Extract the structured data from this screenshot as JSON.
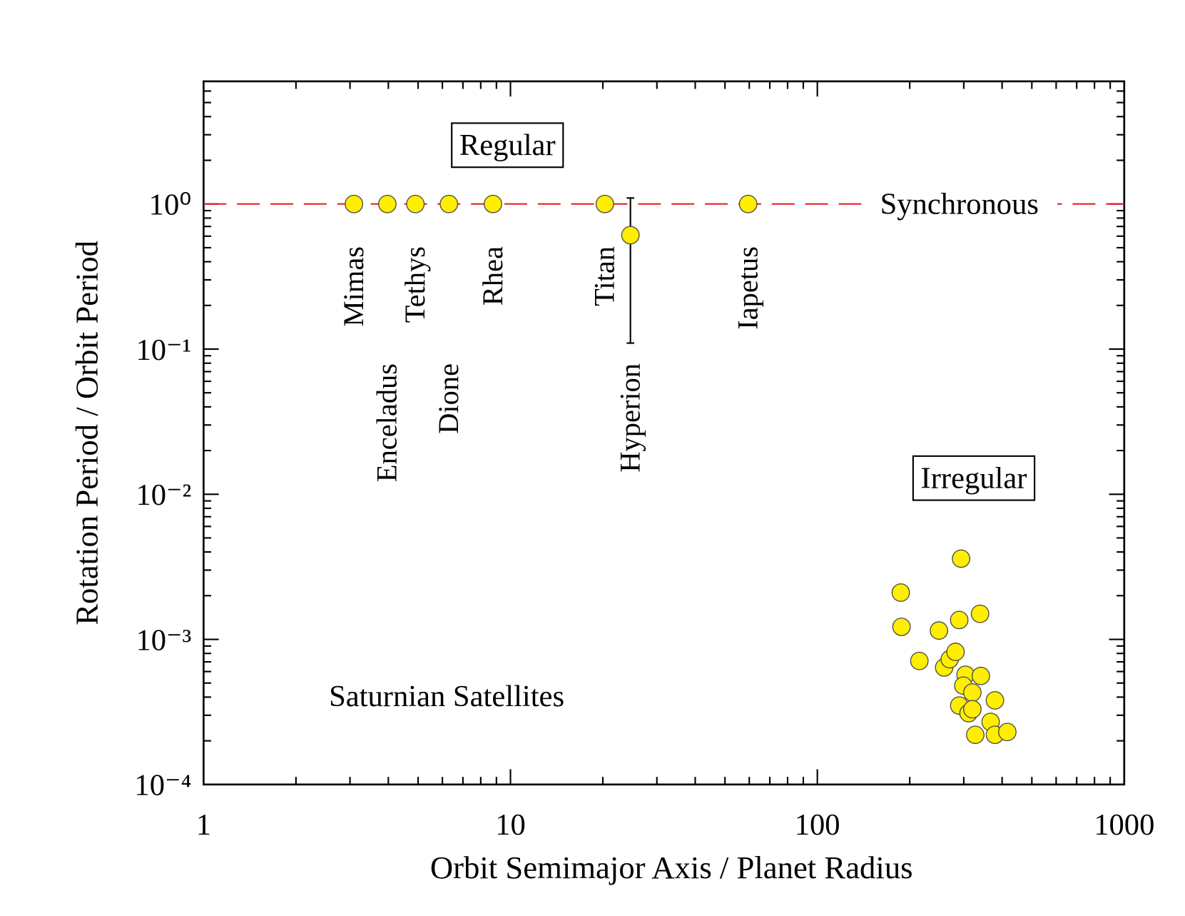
{
  "chart_data": {
    "type": "scatter",
    "xlabel": "Orbit Semimajor Axis / Planet Radius",
    "ylabel": "Rotation Period / Orbit Period",
    "xscale": "log",
    "yscale": "log",
    "xlim": [
      1,
      1000
    ],
    "ylim": [
      0.0001,
      7
    ],
    "xticks": [
      1,
      10,
      100,
      1000
    ],
    "yticks": [
      {
        "value": 0.0001,
        "label": "10⁻⁴"
      },
      {
        "value": 0.001,
        "label": "10⁻³"
      },
      {
        "value": 0.01,
        "label": "10⁻²"
      },
      {
        "value": 0.1,
        "label": "10⁻¹"
      },
      {
        "value": 1,
        "label": "10⁰"
      }
    ],
    "xminorticks": [
      2,
      3,
      4,
      5,
      6,
      7,
      8,
      9,
      20,
      30,
      40,
      50,
      60,
      70,
      80,
      90,
      200,
      300,
      400,
      500,
      600,
      700,
      800,
      900
    ],
    "yminorticks": [
      0.0002,
      0.0003,
      0.0004,
      0.0005,
      0.0006,
      0.0007,
      0.0008,
      0.0009,
      0.002,
      0.003,
      0.004,
      0.005,
      0.006,
      0.007,
      0.008,
      0.009,
      0.02,
      0.03,
      0.04,
      0.05,
      0.06,
      0.07,
      0.08,
      0.09,
      0.2,
      0.3,
      0.4,
      0.5,
      0.6,
      0.7,
      0.8,
      0.9,
      2,
      3,
      4,
      5,
      6,
      7
    ],
    "reference_lines": [
      {
        "value": 1,
        "label": "Synchronous",
        "color": "#e8202a"
      }
    ],
    "annotations": [
      "Regular",
      "Irregular",
      "Saturnian Satellites"
    ],
    "series": [
      {
        "color": "#ffee00",
        "labels": [
          "Mimas",
          "Enceladus",
          "Tethys",
          "Dione",
          "Rhea",
          "Titan",
          "Hyperion",
          "Iapetus"
        ],
        "x": [
          3.09,
          3.97,
          4.9,
          6.3,
          8.77,
          20.3,
          24.6,
          59.5
        ],
        "values": [
          1,
          1,
          1,
          1,
          1,
          1,
          0.61,
          1
        ],
        "y_lower": [
          null,
          null,
          null,
          null,
          null,
          null,
          0.11,
          null
        ],
        "y_upper": [
          null,
          null,
          null,
          null,
          null,
          null,
          1.1,
          null
        ]
      },
      {
        "color": "#ffee00",
        "x": [
          187,
          188,
          215,
          249,
          259,
          270,
          282,
          294,
          290,
          304,
          299,
          290,
          311,
          320,
          320,
          327,
          339,
          341,
          379,
          367,
          379,
          416
        ],
        "values": [
          0.0021,
          0.00122,
          0.00071,
          0.00115,
          0.00064,
          0.00073,
          0.00082,
          0.0036,
          0.00136,
          0.00057,
          0.00048,
          0.00035,
          0.00031,
          0.00043,
          0.00033,
          0.00022,
          0.0015,
          0.00056,
          0.00038,
          0.00027,
          0.00022,
          0.00023
        ]
      }
    ]
  }
}
